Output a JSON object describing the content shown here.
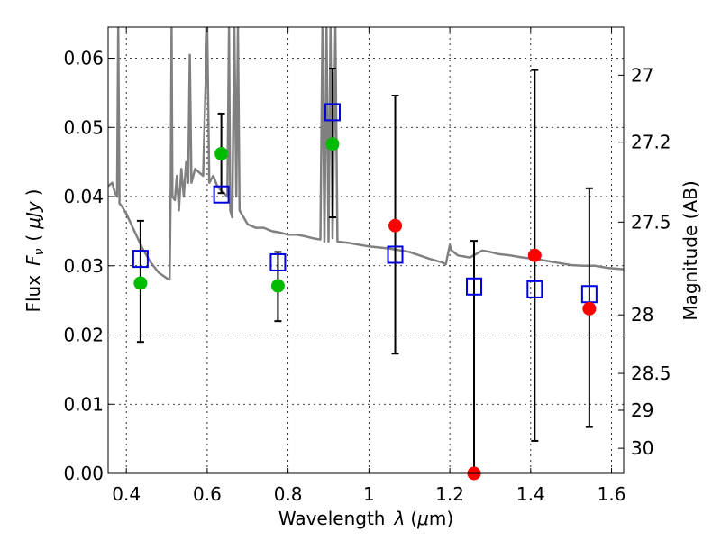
{
  "chart_data": {
    "type": "scatter",
    "xlabel": "Wavelength",
    "xlabel_symbol": "λ",
    "xlabel_unit_open": "(",
    "xlabel_unit": "μ",
    "xlabel_unit_rest": "m)",
    "ylabel": "Flux",
    "ylabel_symbol": "F",
    "ylabel_subscript": "ν",
    "ylabel_unit_open": "(",
    "ylabel_unit": "μJy",
    "ylabel_unit_close": ")",
    "y2label": "Magnitude (AB)",
    "xlim": [
      0.355,
      1.63
    ],
    "ylim": [
      0.0,
      0.0645
    ],
    "grid": true,
    "x_ticks": [
      0.4,
      0.6,
      0.8,
      1.0,
      1.2,
      1.4,
      1.6
    ],
    "x_tick_labels": [
      "0.4",
      "0.6",
      "0.8",
      "1",
      "1.2",
      "1.4",
      "1.6"
    ],
    "y_ticks": [
      0.0,
      0.01,
      0.02,
      0.03,
      0.04,
      0.05,
      0.06
    ],
    "y_tick_labels": [
      "0.00",
      "0.01",
      "0.02",
      "0.03",
      "0.04",
      "0.05",
      "0.06"
    ],
    "mag_ticks": [
      27,
      27.2,
      27.5,
      28,
      28.5,
      29,
      30
    ],
    "mag_tick_labels": [
      "27",
      "27.2",
      "27.5",
      "28",
      "28.5",
      "29",
      "30"
    ],
    "colors": {
      "detected": "#00bb00",
      "upper_limit": "#ff0000",
      "model": "#0000dd",
      "template": "#808080",
      "errorbar": "#000000"
    },
    "observed": [
      {
        "x": 0.435,
        "y": 0.0275,
        "err": [
          0.019,
          0.0365
        ],
        "kind": "detected"
      },
      {
        "x": 0.635,
        "y": 0.0462,
        "err": [
          0.0405,
          0.052
        ],
        "kind": "detected"
      },
      {
        "x": 0.775,
        "y": 0.0271,
        "err": [
          0.022,
          0.032
        ],
        "kind": "detected"
      },
      {
        "x": 0.91,
        "y": 0.0476,
        "err": [
          0.037,
          0.0585
        ],
        "kind": "detected"
      },
      {
        "x": 1.065,
        "y": 0.0358,
        "err": [
          0.0173,
          0.0546
        ],
        "kind": "upper_limit"
      },
      {
        "x": 1.26,
        "y": 0.0,
        "err": [
          0.0,
          0.0336
        ],
        "kind": "upper_limit"
      },
      {
        "x": 1.41,
        "y": 0.0315,
        "err": [
          0.0047,
          0.0583
        ],
        "kind": "upper_limit"
      },
      {
        "x": 1.545,
        "y": 0.0238,
        "err": [
          0.0067,
          0.0412
        ],
        "kind": "upper_limit"
      }
    ],
    "model_points": [
      {
        "x": 0.435,
        "y": 0.031
      },
      {
        "x": 0.635,
        "y": 0.0403
      },
      {
        "x": 0.775,
        "y": 0.0305
      },
      {
        "x": 0.91,
        "y": 0.0522
      },
      {
        "x": 1.065,
        "y": 0.0316
      },
      {
        "x": 1.26,
        "y": 0.027
      },
      {
        "x": 1.41,
        "y": 0.0266
      },
      {
        "x": 1.545,
        "y": 0.0259
      }
    ],
    "template_spectrum": [
      [
        0.355,
        0.0415
      ],
      [
        0.365,
        0.042
      ],
      [
        0.372,
        0.0405
      ],
      [
        0.377,
        0.04
      ],
      [
        0.38,
        0.0645
      ],
      [
        0.383,
        0.039
      ],
      [
        0.39,
        0.0385
      ],
      [
        0.4,
        0.0375
      ],
      [
        0.42,
        0.035
      ],
      [
        0.44,
        0.0325
      ],
      [
        0.46,
        0.0305
      ],
      [
        0.48,
        0.029
      ],
      [
        0.5,
        0.0282
      ],
      [
        0.507,
        0.028
      ],
      [
        0.51,
        0.042
      ],
      [
        0.512,
        0.0645
      ],
      [
        0.514,
        0.04
      ],
      [
        0.52,
        0.0395
      ],
      [
        0.525,
        0.043
      ],
      [
        0.53,
        0.038
      ],
      [
        0.536,
        0.044
      ],
      [
        0.542,
        0.04
      ],
      [
        0.548,
        0.045
      ],
      [
        0.553,
        0.042
      ],
      [
        0.557,
        0.0605
      ],
      [
        0.561,
        0.042
      ],
      [
        0.57,
        0.044
      ],
      [
        0.58,
        0.0435
      ],
      [
        0.59,
        0.043
      ],
      [
        0.6,
        0.0645
      ],
      [
        0.605,
        0.042
      ],
      [
        0.615,
        0.043
      ],
      [
        0.625,
        0.0415
      ],
      [
        0.64,
        0.0405
      ],
      [
        0.65,
        0.04
      ],
      [
        0.654,
        0.0645
      ],
      [
        0.657,
        0.038
      ],
      [
        0.662,
        0.037
      ],
      [
        0.667,
        0.0645
      ],
      [
        0.672,
        0.04
      ],
      [
        0.676,
        0.0645
      ],
      [
        0.68,
        0.038
      ],
      [
        0.69,
        0.037
      ],
      [
        0.7,
        0.036
      ],
      [
        0.72,
        0.0355
      ],
      [
        0.74,
        0.0355
      ],
      [
        0.76,
        0.035
      ],
      [
        0.78,
        0.0348
      ],
      [
        0.8,
        0.0345
      ],
      [
        0.82,
        0.0345
      ],
      [
        0.84,
        0.0343
      ],
      [
        0.86,
        0.034
      ],
      [
        0.88,
        0.0338
      ],
      [
        0.885,
        0.0645
      ],
      [
        0.89,
        0.0335
      ],
      [
        0.895,
        0.0645
      ],
      [
        0.9,
        0.0335
      ],
      [
        0.905,
        0.0645
      ],
      [
        0.91,
        0.034
      ],
      [
        0.917,
        0.0645
      ],
      [
        0.922,
        0.0335
      ],
      [
        0.95,
        0.0333
      ],
      [
        1.0,
        0.0328
      ],
      [
        1.05,
        0.0325
      ],
      [
        1.1,
        0.032
      ],
      [
        1.15,
        0.031
      ],
      [
        1.18,
        0.0305
      ],
      [
        1.19,
        0.0302
      ],
      [
        1.2,
        0.033
      ],
      [
        1.205,
        0.0322
      ],
      [
        1.22,
        0.0315
      ],
      [
        1.25,
        0.0312
      ],
      [
        1.28,
        0.0322
      ],
      [
        1.3,
        0.032
      ],
      [
        1.32,
        0.0317
      ],
      [
        1.35,
        0.0315
      ],
      [
        1.38,
        0.0312
      ],
      [
        1.41,
        0.031
      ],
      [
        1.44,
        0.0307
      ],
      [
        1.47,
        0.0304
      ],
      [
        1.5,
        0.0301
      ],
      [
        1.53,
        0.03
      ],
      [
        1.56,
        0.03
      ],
      [
        1.59,
        0.0297
      ],
      [
        1.63,
        0.0295
      ]
    ]
  }
}
